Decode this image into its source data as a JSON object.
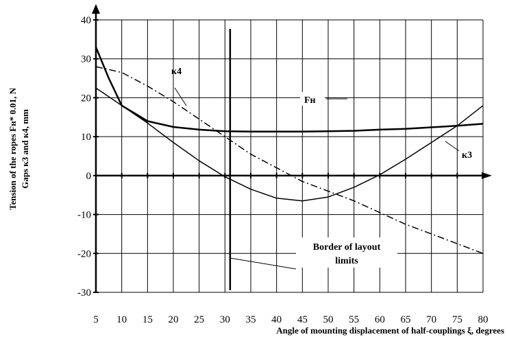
{
  "chart_data": {
    "type": "line",
    "x_range": [
      5,
      80
    ],
    "y_range": [
      -30,
      40
    ],
    "x_ticks": [
      5,
      10,
      15,
      20,
      25,
      30,
      35,
      40,
      45,
      50,
      55,
      60,
      65,
      70,
      75,
      80
    ],
    "y_ticks": [
      -30,
      -20,
      -10,
      0,
      10,
      20,
      30,
      40
    ],
    "x_tick_labels": [
      "5",
      "10",
      "15",
      "20",
      "25",
      "30",
      "35",
      "40",
      "45",
      "50",
      "55",
      "60",
      "65",
      "70",
      "75",
      "80"
    ],
    "y_tick_labels": [
      "-30",
      "-20",
      "-10",
      "0",
      "10",
      "20",
      "30",
      "40"
    ],
    "xlabel": "Angle of mounting displacement of half-couplings ξ, degrees",
    "ylabel_line1": "Tension of the ropes Fн* 0.01, N",
    "ylabel_line2": "Gaps к3 and к4, mm",
    "grid": true,
    "series": [
      {
        "name": "Fн",
        "style": "solid",
        "width": 2.5,
        "x": [
          5,
          7.5,
          10,
          12.5,
          15,
          20,
          25,
          30,
          35,
          40,
          45,
          50,
          55,
          60,
          65,
          70,
          75,
          80
        ],
        "y": [
          33,
          25,
          18,
          16,
          14,
          12.5,
          11.8,
          11.4,
          11.3,
          11.3,
          11.3,
          11.4,
          11.5,
          11.8,
          12.0,
          12.4,
          12.8,
          13.3
        ]
      },
      {
        "name": "к3",
        "style": "solid",
        "width": 1.5,
        "x": [
          5,
          10,
          15,
          20,
          25,
          30,
          35,
          40,
          45,
          50,
          55,
          60,
          65,
          70,
          75,
          80
        ],
        "y": [
          22.5,
          18,
          13.5,
          8.5,
          3.8,
          -0.3,
          -3.5,
          -5.8,
          -6.5,
          -5.5,
          -3.0,
          0.2,
          4.2,
          8.5,
          12.8,
          18
        ]
      },
      {
        "name": "к4",
        "style": "dashdot",
        "width": 1.5,
        "x": [
          5,
          10,
          15,
          20,
          25,
          30,
          35,
          40,
          45,
          50,
          55,
          60,
          65,
          70,
          75,
          80
        ],
        "y": [
          28,
          26.5,
          23,
          19,
          14.5,
          10,
          5.5,
          2,
          -1.5,
          -4,
          -6.5,
          -9.5,
          -12.5,
          -15,
          -17.5,
          -20
        ]
      }
    ],
    "annotations": {
      "label_k4": "к4",
      "label_fh": "Fн",
      "label_k3": "к3",
      "border_line1": "Border of layout",
      "border_line2": "limits"
    },
    "border_x": 31
  }
}
